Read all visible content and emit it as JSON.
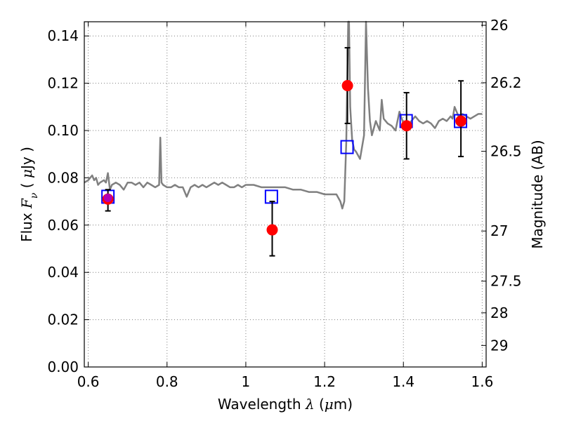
{
  "chart_data": {
    "type": "scatter",
    "xlabel": {
      "prefix": "Wavelength ",
      "symbol": "λ",
      "unit_open": " (",
      "unit_mu": "μ",
      "unit_rest": "m)"
    },
    "ylabel": {
      "prefix": "Flux ",
      "symbol": "F",
      "subscript": "ν",
      "unit_open": " ( ",
      "unit_mu": "μ",
      "unit_rest": "Jy )"
    },
    "y2label": "Magnitude (AB)",
    "xlim": [
      0.59,
      1.61
    ],
    "ylim": [
      0.0,
      0.146
    ],
    "xticks": [
      {
        "value": 0.6,
        "label": "0.6"
      },
      {
        "value": 0.8,
        "label": "0.8"
      },
      {
        "value": 1.0,
        "label": "1"
      },
      {
        "value": 1.2,
        "label": "1.2"
      },
      {
        "value": 1.4,
        "label": "1.4"
      },
      {
        "value": 1.6,
        "label": "1.6"
      }
    ],
    "yticks": [
      {
        "value": 0.0,
        "label": "0.00"
      },
      {
        "value": 0.02,
        "label": "0.02"
      },
      {
        "value": 0.04,
        "label": "0.04"
      },
      {
        "value": 0.06,
        "label": "0.06"
      },
      {
        "value": 0.08,
        "label": "0.08"
      },
      {
        "value": 0.1,
        "label": "0.10"
      },
      {
        "value": 0.12,
        "label": "0.12"
      },
      {
        "value": 0.14,
        "label": "0.14"
      }
    ],
    "y2ticks": [
      {
        "flux": 0.1445,
        "label": "26"
      },
      {
        "flux": 0.1202,
        "label": "26.2"
      },
      {
        "flux": 0.0912,
        "label": "26.5"
      },
      {
        "flux": 0.0575,
        "label": "27"
      },
      {
        "flux": 0.0363,
        "label": "27.5"
      },
      {
        "flux": 0.0229,
        "label": "28"
      },
      {
        "flux": 0.0091,
        "label": "29"
      }
    ],
    "grid": true,
    "series": [
      {
        "kind": "line",
        "color": "#808080",
        "x": [
          0.59,
          0.6,
          0.61,
          0.615,
          0.62,
          0.625,
          0.63,
          0.64,
          0.645,
          0.65,
          0.655,
          0.66,
          0.67,
          0.68,
          0.69,
          0.7,
          0.71,
          0.72,
          0.73,
          0.74,
          0.75,
          0.76,
          0.77,
          0.78,
          0.783,
          0.786,
          0.79,
          0.8,
          0.81,
          0.82,
          0.83,
          0.84,
          0.85,
          0.86,
          0.87,
          0.88,
          0.89,
          0.9,
          0.91,
          0.92,
          0.93,
          0.94,
          0.95,
          0.96,
          0.97,
          0.98,
          0.99,
          1.0,
          1.02,
          1.04,
          1.06,
          1.08,
          1.1,
          1.12,
          1.14,
          1.16,
          1.18,
          1.2,
          1.22,
          1.23,
          1.24,
          1.245,
          1.25,
          1.255,
          1.26,
          1.262,
          1.265,
          1.27,
          1.275,
          1.28,
          1.29,
          1.3,
          1.305,
          1.31,
          1.315,
          1.32,
          1.33,
          1.34,
          1.345,
          1.35,
          1.36,
          1.37,
          1.38,
          1.39,
          1.4,
          1.41,
          1.42,
          1.43,
          1.44,
          1.45,
          1.46,
          1.47,
          1.48,
          1.49,
          1.5,
          1.51,
          1.52,
          1.525,
          1.53,
          1.54,
          1.55,
          1.56,
          1.57,
          1.58,
          1.59,
          1.6
        ],
        "y": [
          0.078,
          0.079,
          0.081,
          0.079,
          0.08,
          0.077,
          0.078,
          0.079,
          0.078,
          0.082,
          0.075,
          0.077,
          0.078,
          0.077,
          0.075,
          0.078,
          0.078,
          0.077,
          0.078,
          0.076,
          0.078,
          0.077,
          0.076,
          0.077,
          0.097,
          0.078,
          0.077,
          0.076,
          0.076,
          0.077,
          0.076,
          0.076,
          0.072,
          0.076,
          0.077,
          0.076,
          0.077,
          0.076,
          0.077,
          0.078,
          0.077,
          0.078,
          0.077,
          0.076,
          0.076,
          0.077,
          0.076,
          0.077,
          0.077,
          0.076,
          0.076,
          0.076,
          0.076,
          0.075,
          0.075,
          0.074,
          0.074,
          0.073,
          0.073,
          0.073,
          0.07,
          0.067,
          0.07,
          0.095,
          0.146,
          0.146,
          0.11,
          0.096,
          0.092,
          0.091,
          0.088,
          0.098,
          0.146,
          0.118,
          0.104,
          0.098,
          0.104,
          0.1,
          0.113,
          0.105,
          0.103,
          0.102,
          0.1,
          0.108,
          0.103,
          0.101,
          0.104,
          0.106,
          0.104,
          0.103,
          0.104,
          0.103,
          0.101,
          0.104,
          0.105,
          0.104,
          0.106,
          0.105,
          0.11,
          0.106,
          0.107,
          0.106,
          0.105,
          0.106,
          0.107,
          0.107
        ]
      },
      {
        "kind": "square-markers",
        "color": "#0000ff",
        "x": [
          0.65,
          1.065,
          1.257,
          1.407,
          1.545
        ],
        "y": [
          0.072,
          0.072,
          0.093,
          0.104,
          0.104
        ]
      },
      {
        "kind": "errorbar-points",
        "color": "#ff0000",
        "x": [
          0.65,
          1.067,
          1.258,
          1.408,
          1.546
        ],
        "y": [
          0.071,
          0.058,
          0.119,
          0.102,
          0.104
        ],
        "yerr_low": [
          0.005,
          0.011,
          0.016,
          0.014,
          0.015
        ],
        "yerr_high": [
          0.004,
          0.012,
          0.016,
          0.014,
          0.017
        ]
      },
      {
        "kind": "highlight-point",
        "color": "#aa00cc",
        "x": [
          0.65
        ],
        "y": [
          0.0715
        ]
      }
    ]
  }
}
